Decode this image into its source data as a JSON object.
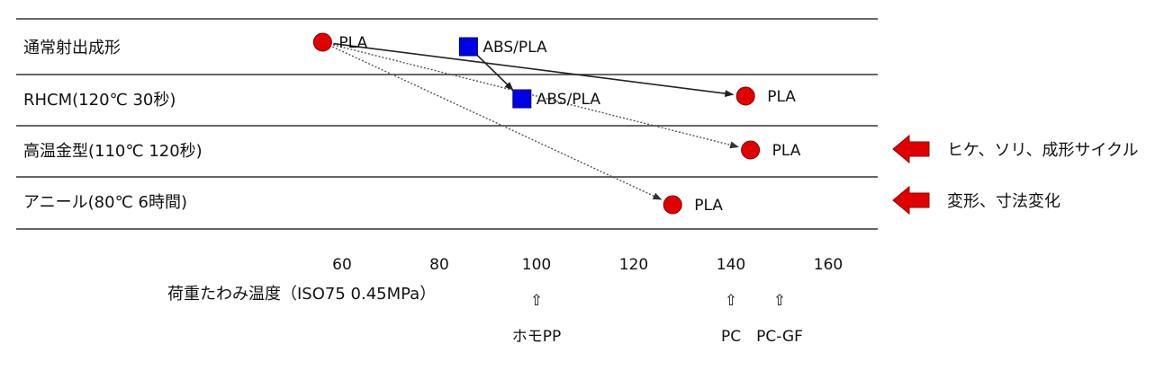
{
  "chart_data": {
    "type": "scatter",
    "xlabel": "荷重たわみ温度（ISO75 0.45MPa）",
    "xticks": [
      60,
      80,
      100,
      120,
      140,
      160
    ],
    "rows": [
      "通常射出成形",
      "RHCM(120℃ 30秒)",
      "高温金型(110℃ 120秒)",
      "アニール(80℃ 6時間)"
    ],
    "points": [
      {
        "row": 0,
        "x": 56,
        "marker": "circle",
        "color": "#e00000",
        "label": "PLA"
      },
      {
        "row": 0,
        "x": 86,
        "marker": "square",
        "color": "#0000e6",
        "label": "ABS/PLA"
      },
      {
        "row": 1,
        "x": 143,
        "marker": "circle",
        "color": "#e00000",
        "label": "PLA"
      },
      {
        "row": 1,
        "x": 97,
        "marker": "square",
        "color": "#0000e6",
        "label": "ABS/PLA"
      },
      {
        "row": 2,
        "x": 144,
        "marker": "circle",
        "color": "#e00000",
        "label": "PLA"
      },
      {
        "row": 3,
        "x": 128,
        "marker": "circle",
        "color": "#e00000",
        "label": "PLA"
      }
    ],
    "arrows": [
      {
        "from": 0,
        "to": 2,
        "style": "solid"
      },
      {
        "from": 1,
        "to": 3,
        "style": "solid"
      },
      {
        "from": 0,
        "to": 4,
        "style": "dotted"
      },
      {
        "from": 0,
        "to": 5,
        "style": "dotted"
      }
    ],
    "references": [
      {
        "x": 100,
        "label": "ホモPP"
      },
      {
        "x": 140,
        "label": "PC"
      },
      {
        "x": 150,
        "label": "PC-GF"
      }
    ],
    "callouts": [
      {
        "row": 2,
        "text": "ヒケ、ソリ、成形サイクル",
        "color": "#e00000"
      },
      {
        "row": 3,
        "text": "変形、寸法変化",
        "color": "#e00000"
      }
    ],
    "line_color": "#333333",
    "ref_arrow_glyph": "⇧"
  }
}
